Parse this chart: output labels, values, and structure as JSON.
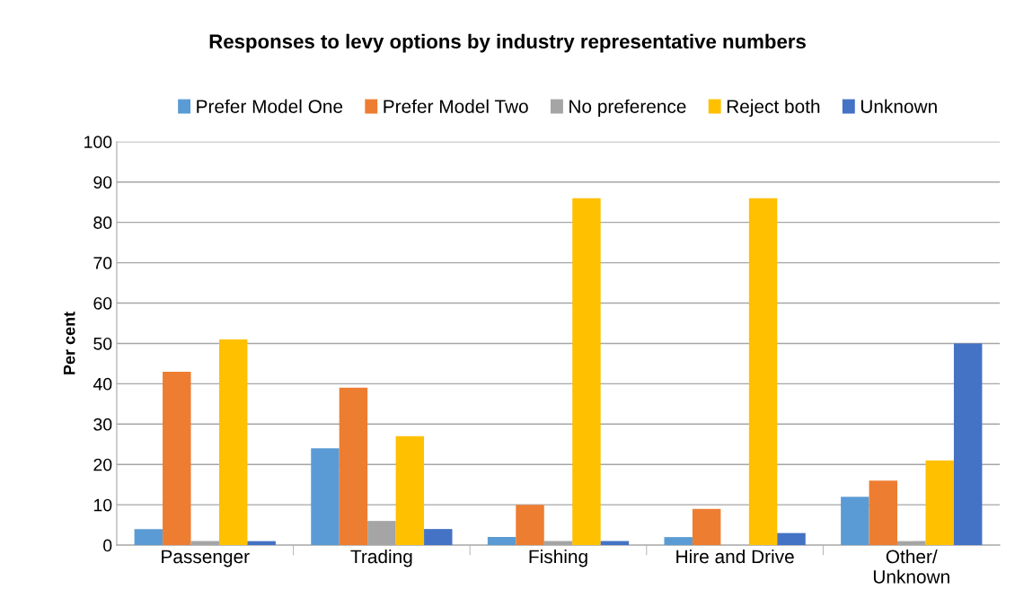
{
  "chart_data": {
    "type": "bar",
    "title": "Responses to levy options by industry representative numbers",
    "ylabel": "Per cent",
    "categories": [
      "Passenger",
      "Trading",
      "Fishing",
      "Hire and Drive",
      "Other/\nUnknown"
    ],
    "series": [
      {
        "name": "Prefer Model One",
        "color": "#5b9bd5",
        "values": [
          4,
          24,
          2,
          2,
          12
        ]
      },
      {
        "name": "Prefer Model Two",
        "color": "#ed7d31",
        "values": [
          43,
          39,
          10,
          9,
          16
        ]
      },
      {
        "name": "No preference",
        "color": "#a5a5a5",
        "values": [
          1,
          6,
          1,
          0,
          1
        ]
      },
      {
        "name": "Reject both",
        "color": "#ffc000",
        "values": [
          51,
          27,
          86,
          86,
          21
        ]
      },
      {
        "name": "Unknown",
        "color": "#4472c4",
        "values": [
          1,
          4,
          1,
          3,
          50
        ]
      }
    ],
    "ylim": [
      0,
      100
    ],
    "yticks": [
      0,
      10,
      20,
      30,
      40,
      50,
      60,
      70,
      80,
      90,
      100
    ],
    "grid": "y",
    "legend": "top"
  }
}
